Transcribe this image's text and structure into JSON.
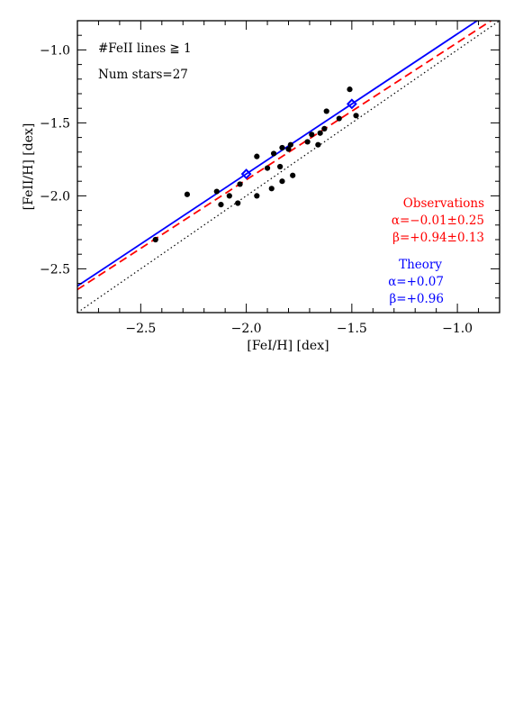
{
  "chart_data": {
    "type": "scatter",
    "xlabel": "[FeI/H] [dex]",
    "ylabel": "[FeII/H] [dex]",
    "xlim": [
      -2.8,
      -0.8
    ],
    "ylim": [
      -2.8,
      -0.8
    ],
    "x_ticks": [
      -2.5,
      -2.0,
      -1.5,
      -1.0
    ],
    "y_ticks": [
      -2.5,
      -2.0,
      -1.5,
      -1.0
    ],
    "x_tick_labels": [
      "−2.5",
      "−2.0",
      "−1.5",
      "−1.0"
    ],
    "y_tick_labels": [
      "−2.5",
      "−2.0",
      "−1.5",
      "−1.0"
    ],
    "grid": false,
    "annotations": {
      "condition": "#FeII lines ≧ 1",
      "num_stars": "Num stars=27",
      "observations_title": "Observations",
      "observations_alpha": "α=−0.01±0.25",
      "observations_beta": "β=+0.94±0.13",
      "theory_title": "Theory",
      "theory_alpha": "α=+0.07",
      "theory_beta": "β=+0.96"
    },
    "colors": {
      "points": "#000000",
      "observations": "#ff0000",
      "theory": "#0000ff",
      "identity": "#000000"
    },
    "points": [
      {
        "x": -2.43,
        "y": -2.3
      },
      {
        "x": -2.28,
        "y": -1.99
      },
      {
        "x": -2.14,
        "y": -1.97
      },
      {
        "x": -2.12,
        "y": -2.06
      },
      {
        "x": -2.08,
        "y": -2.0
      },
      {
        "x": -2.04,
        "y": -2.05
      },
      {
        "x": -2.03,
        "y": -1.92
      },
      {
        "x": -1.95,
        "y": -1.73
      },
      {
        "x": -1.95,
        "y": -2.0
      },
      {
        "x": -1.9,
        "y": -1.81
      },
      {
        "x": -1.88,
        "y": -1.95
      },
      {
        "x": -1.87,
        "y": -1.71
      },
      {
        "x": -1.84,
        "y": -1.8
      },
      {
        "x": -1.83,
        "y": -1.67
      },
      {
        "x": -1.83,
        "y": -1.9
      },
      {
        "x": -1.8,
        "y": -1.68
      },
      {
        "x": -1.79,
        "y": -1.65
      },
      {
        "x": -1.78,
        "y": -1.86
      },
      {
        "x": -1.71,
        "y": -1.63
      },
      {
        "x": -1.69,
        "y": -1.58
      },
      {
        "x": -1.66,
        "y": -1.65
      },
      {
        "x": -1.65,
        "y": -1.57
      },
      {
        "x": -1.63,
        "y": -1.54
      },
      {
        "x": -1.62,
        "y": -1.42
      },
      {
        "x": -1.56,
        "y": -1.47
      },
      {
        "x": -1.51,
        "y": -1.27
      },
      {
        "x": -1.48,
        "y": -1.45
      }
    ],
    "lines": [
      {
        "name": "Observations",
        "style": "dashed",
        "color": "#ff0000",
        "alpha": -0.01,
        "beta": 0.94
      },
      {
        "name": "Theory",
        "style": "solid",
        "color": "#0000ff",
        "alpha": 0.07,
        "beta": 0.96
      },
      {
        "name": "identity",
        "style": "dotted",
        "color": "#000000",
        "alpha": 0.0,
        "beta": 1.0
      }
    ],
    "theory_markers": [
      {
        "x": -2.0,
        "y": -1.85
      },
      {
        "x": -1.5,
        "y": -1.37
      }
    ]
  }
}
